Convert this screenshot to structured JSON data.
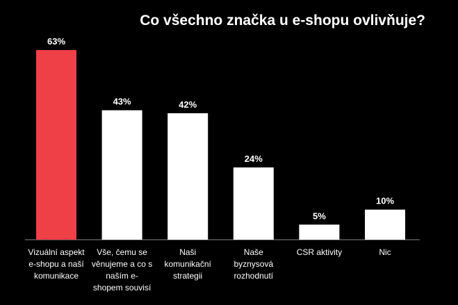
{
  "chart_data": {
    "type": "bar",
    "title": "Co všechno značka u e-shopu ovlivňuje?",
    "categories": [
      [
        "Vizuální aspekt",
        "e-shopu a naší",
        "komunikace"
      ],
      [
        "Vše, čemu se",
        "věnujeme a co s",
        "naším e-",
        "shopem souvisí"
      ],
      [
        "Naši",
        "komunikační",
        "strategii"
      ],
      [
        "Naše",
        "byznysová",
        "rozhodnutí"
      ],
      [
        "CSR aktivity"
      ],
      [
        "Nic"
      ]
    ],
    "values": [
      63,
      43,
      42,
      24,
      5,
      10
    ],
    "value_labels": [
      "63%",
      "43%",
      "42%",
      "24%",
      "5%",
      "10%"
    ],
    "unit": "%",
    "highlight_index": 0,
    "ylim": [
      0,
      63
    ],
    "grid": false,
    "legend": "none",
    "colors": {
      "background": "#000000",
      "highlight": "#ef3f47",
      "bar": "#ffffff",
      "text": "#ffffff",
      "baseline": "#8a8a8a"
    }
  }
}
